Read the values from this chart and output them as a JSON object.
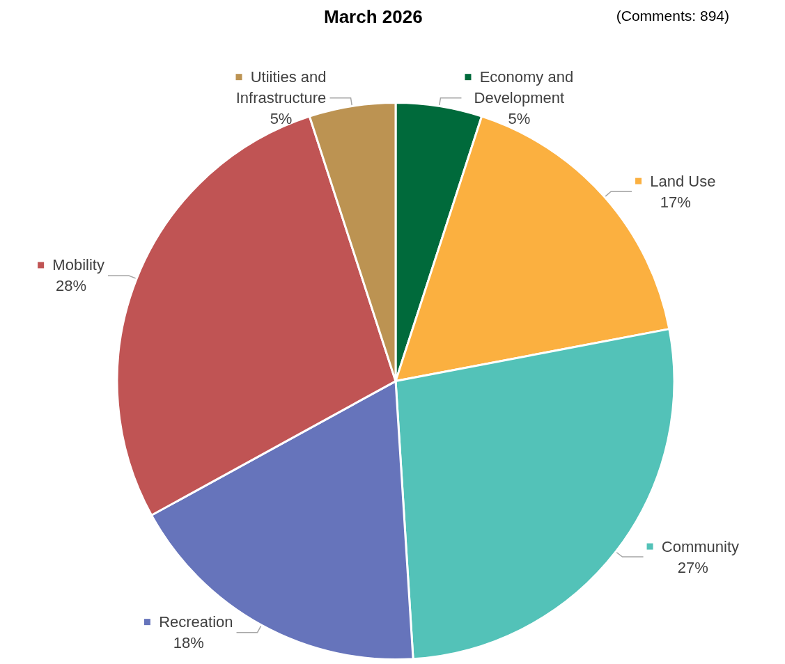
{
  "chart_data": {
    "type": "pie",
    "title": "March 2026",
    "annotations": [
      "(Comments: 894)"
    ],
    "categories": [
      "Economy and Development",
      "Land Use",
      "Community",
      "Recreation",
      "Mobility",
      "Utiities and Infrastructure"
    ],
    "values": [
      5,
      17,
      27,
      18,
      28,
      5
    ],
    "colors": [
      "#006a3b",
      "#fbb040",
      "#53c2b8",
      "#6674bb",
      "#c05454",
      "#bc9352"
    ],
    "value_labels": [
      "5%",
      "17%",
      "27%",
      "18%",
      "28%",
      "5%"
    ],
    "legend": "right"
  }
}
